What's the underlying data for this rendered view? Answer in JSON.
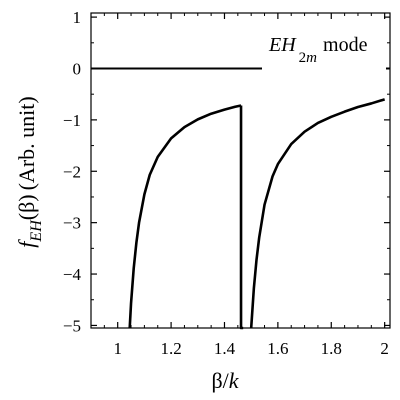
{
  "chart_data": {
    "type": "line",
    "xlabel": {
      "symbol": "β",
      "slash": "/",
      "variable": "k"
    },
    "ylabel": {
      "func": "f",
      "subscript": "EH",
      "arg": "(β)",
      "unit": "(Arb. unit)"
    },
    "annotation": {
      "main": "EH",
      "subscript_num": "2",
      "subscript_var": "m",
      "suffix": "mode"
    },
    "xlim": [
      0.9,
      2.02
    ],
    "ylim": [
      -5.05,
      1.08
    ],
    "x_ticks": [
      1,
      1.2,
      1.4,
      1.6,
      1.8,
      2
    ],
    "x_tick_labels": [
      "1",
      "1.2",
      "1.4",
      "1.6",
      "1.8",
      "2"
    ],
    "y_ticks": [
      1,
      0,
      -1,
      -2,
      -3,
      -4,
      -5
    ],
    "y_tick_labels": [
      "1",
      "0",
      "−1",
      "−2",
      "−3",
      "−4",
      "−5"
    ],
    "zero_line": 0,
    "series": [
      {
        "x": [
          1.045,
          1.05,
          1.06,
          1.07,
          1.08,
          1.1,
          1.12,
          1.15,
          1.2,
          1.25,
          1.3,
          1.35,
          1.4,
          1.44,
          1.462
        ],
        "y": [
          -5.05,
          -4.57,
          -3.89,
          -3.39,
          -3.0,
          -2.45,
          -2.07,
          -1.72,
          -1.36,
          -1.14,
          -0.99,
          -0.88,
          -0.8,
          -0.745,
          -0.72
        ]
      },
      {
        "x": [
          1.462,
          1.462,
          1.47
        ],
        "y": [
          -0.72,
          -5.05,
          -5.05
        ]
      },
      {
        "x": [
          1.5,
          1.51,
          1.52,
          1.53,
          1.55,
          1.58,
          1.6,
          1.65,
          1.7,
          1.75,
          1.8,
          1.85,
          1.9,
          1.95,
          2.0
        ],
        "y": [
          -5.05,
          -4.28,
          -3.72,
          -3.29,
          -2.65,
          -2.1,
          -1.86,
          -1.47,
          -1.23,
          -1.06,
          -0.94,
          -0.84,
          -0.75,
          -0.68,
          -0.6
        ]
      }
    ]
  }
}
